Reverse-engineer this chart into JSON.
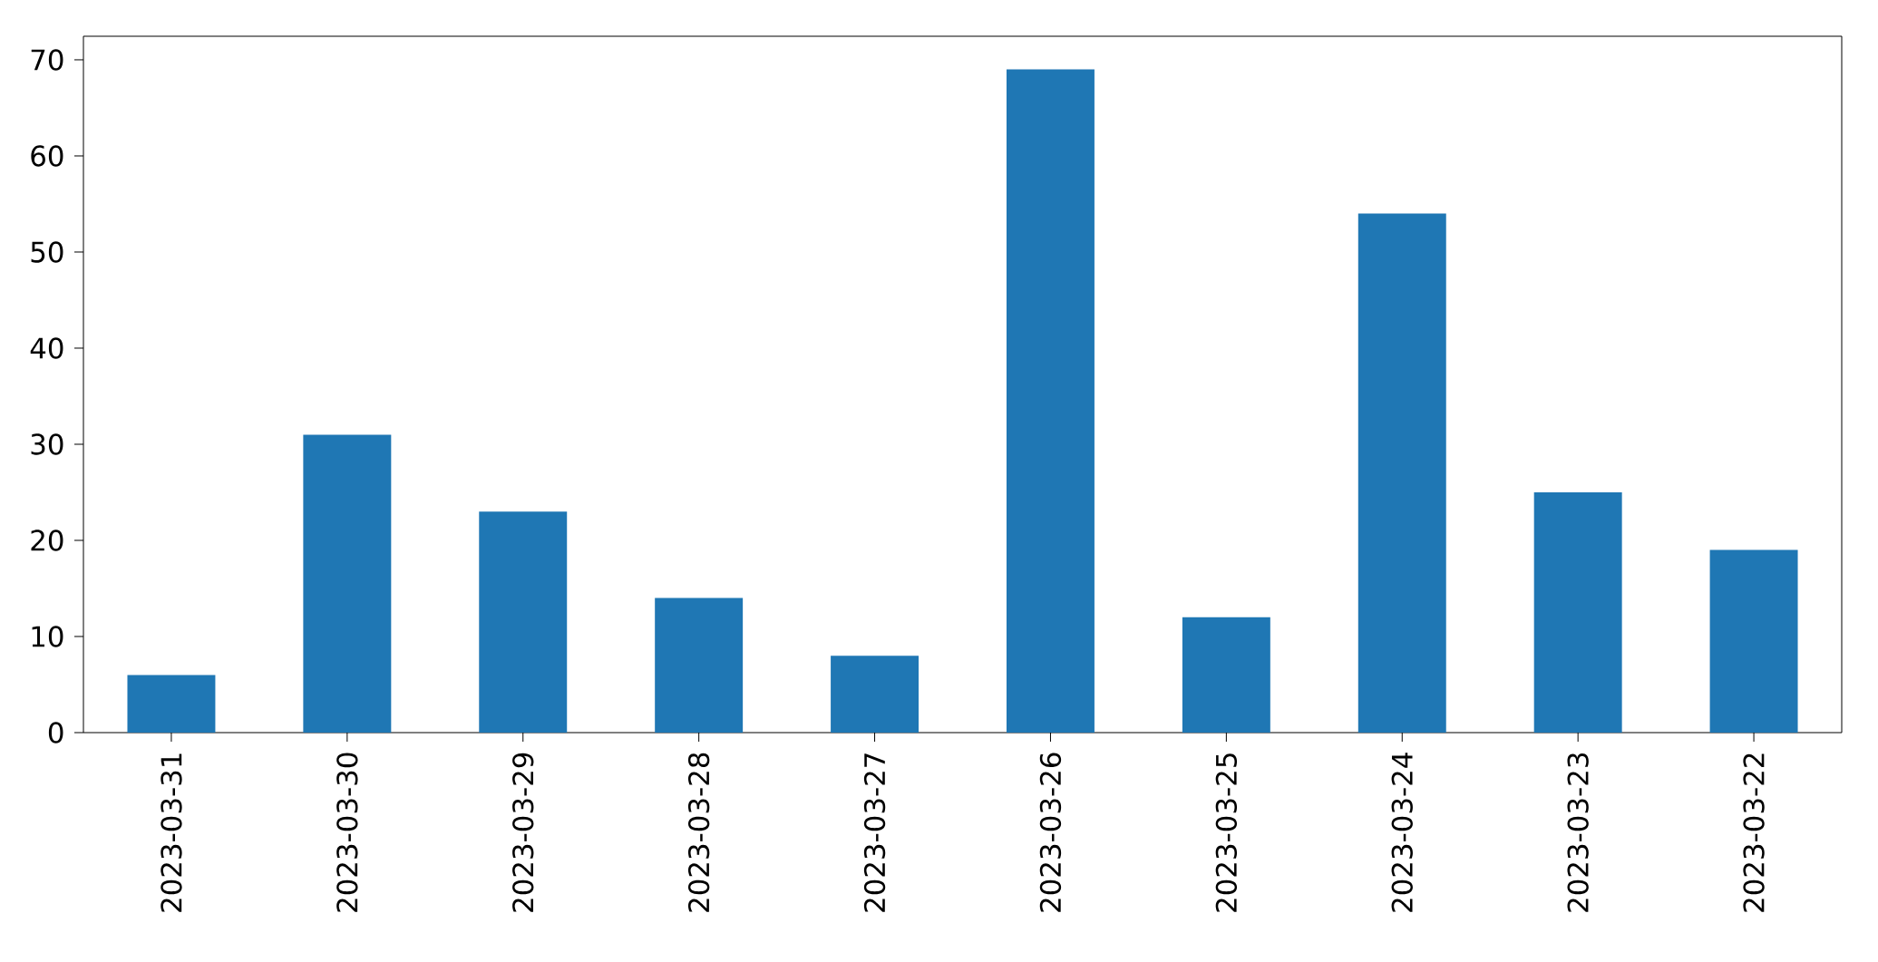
{
  "chart_data": {
    "type": "bar",
    "categories": [
      "2023-03-31",
      "2023-03-30",
      "2023-03-29",
      "2023-03-28",
      "2023-03-27",
      "2023-03-26",
      "2023-03-25",
      "2023-03-24",
      "2023-03-23",
      "2023-03-22"
    ],
    "values": [
      6,
      31,
      23,
      14,
      8,
      69,
      12,
      54,
      25,
      19
    ],
    "color": "#1f77b4",
    "ylim": [
      0,
      72.45
    ],
    "yticks": [
      0,
      10,
      20,
      30,
      40,
      50,
      60,
      70
    ]
  }
}
